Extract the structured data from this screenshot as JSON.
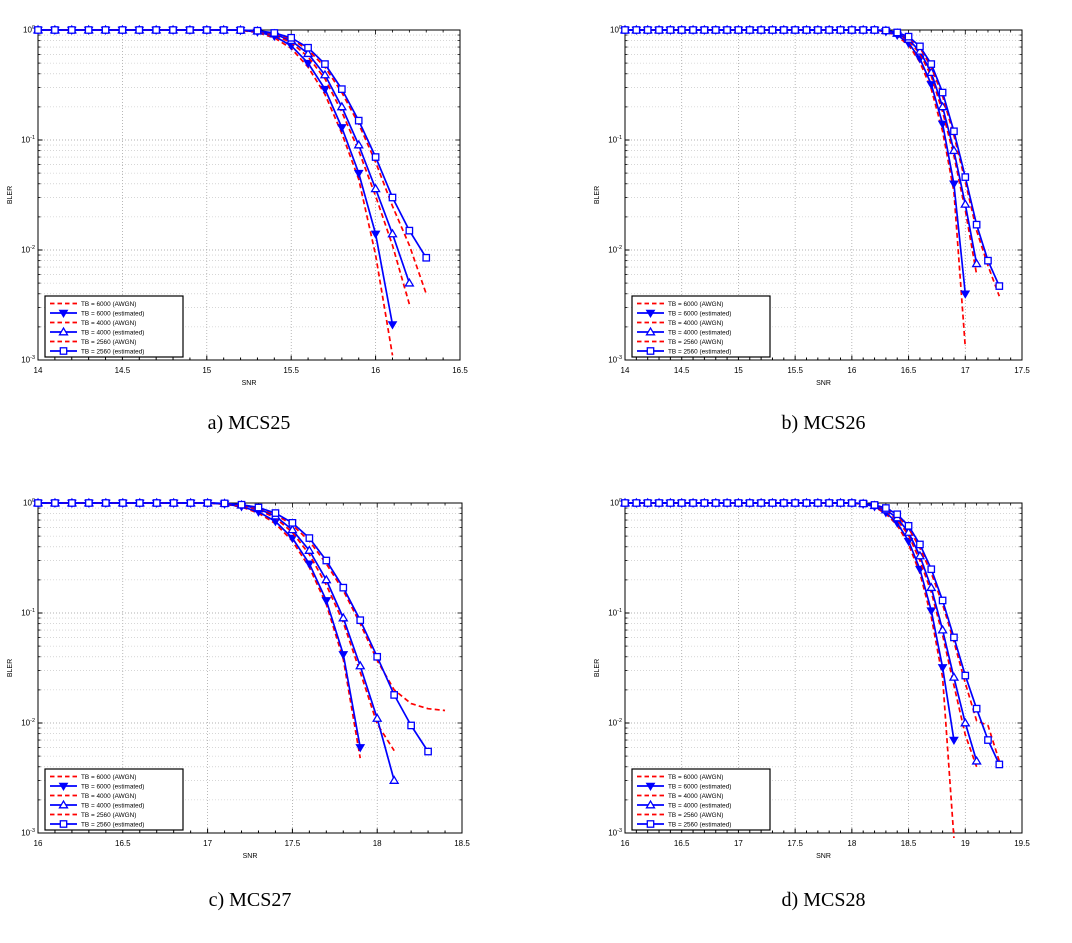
{
  "page": {
    "background": "#ffffff"
  },
  "colors": {
    "awgn": "#ff0000",
    "estimated": "#0000ff",
    "axis": "#000000",
    "grid_major": "#999999",
    "grid_minor": "#bdbdbd",
    "legend_bg": "#ffffff",
    "legend_border": "#000000"
  },
  "chart_data": [
    {
      "id": "a",
      "type": "line",
      "caption": "a) MCS25",
      "xlabel": "SNR",
      "ylabel": "BLER",
      "xlim": [
        14,
        16.5
      ],
      "xticks": [
        "14",
        "14.5",
        "15",
        "15.5",
        "16",
        "16.5"
      ],
      "ylog": true,
      "ylim": [
        0.001,
        1
      ],
      "yticks": [
        "10^0",
        "10^-1",
        "10^-2",
        "10^-3"
      ],
      "legend_position": "bottom-left",
      "series": [
        {
          "name": "TB = 6000 (AWGN)",
          "color": "#ff0000",
          "style": "dashed",
          "marker": "none",
          "x0": 14.0,
          "dx": 0.1,
          "y": [
            1,
            1,
            1,
            1,
            1,
            1,
            1,
            1,
            1,
            1,
            1,
            1,
            0.993,
            0.95,
            0.85,
            0.68,
            0.46,
            0.26,
            0.115,
            0.044,
            0.009,
            0.0011
          ]
        },
        {
          "name": "TB = 6000 (estimated)",
          "color": "#0000ff",
          "style": "solid",
          "marker": "triangle-down",
          "x0": 14.0,
          "dx": 0.1,
          "y": [
            1,
            1,
            1,
            1,
            1,
            1,
            1,
            1,
            1,
            1,
            1,
            1,
            0.995,
            0.96,
            0.88,
            0.72,
            0.5,
            0.29,
            0.13,
            0.05,
            0.014,
            0.0021
          ]
        },
        {
          "name": "TB = 4000 (AWGN)",
          "color": "#ff0000",
          "style": "dashed",
          "marker": "none",
          "x0": 14.0,
          "dx": 0.1,
          "y": [
            1,
            1,
            1,
            1,
            1,
            1,
            1,
            1,
            1,
            1,
            1,
            1,
            0.996,
            0.97,
            0.9,
            0.77,
            0.57,
            0.36,
            0.18,
            0.08,
            0.031,
            0.011,
            0.0032
          ]
        },
        {
          "name": "TB = 4000 (estimated)",
          "color": "#0000ff",
          "style": "solid",
          "marker": "triangle-up",
          "x0": 14.0,
          "dx": 0.1,
          "y": [
            1,
            1,
            1,
            1,
            1,
            1,
            1,
            1,
            1,
            1,
            1,
            1,
            0.997,
            0.975,
            0.92,
            0.8,
            0.61,
            0.39,
            0.2,
            0.09,
            0.036,
            0.014,
            0.005
          ]
        },
        {
          "name": "TB = 2560 (AWGN)",
          "color": "#ff0000",
          "style": "dashed",
          "marker": "none",
          "x0": 14.0,
          "dx": 0.1,
          "y": [
            1,
            1,
            1,
            1,
            1,
            1,
            1,
            1,
            1,
            1,
            1,
            1,
            0.997,
            0.982,
            0.93,
            0.83,
            0.66,
            0.46,
            0.27,
            0.14,
            0.063,
            0.025,
            0.011,
            0.004
          ]
        },
        {
          "name": "TB = 2560 (estimated)",
          "color": "#0000ff",
          "style": "solid",
          "marker": "square",
          "x0": 14.0,
          "dx": 0.1,
          "y": [
            1,
            1,
            1,
            1,
            1,
            1,
            1,
            1,
            1,
            1,
            1,
            1,
            0.998,
            0.985,
            0.94,
            0.85,
            0.69,
            0.49,
            0.29,
            0.15,
            0.07,
            0.03,
            0.015,
            0.0085
          ]
        }
      ]
    },
    {
      "id": "b",
      "type": "line",
      "caption": "b) MCS26",
      "xlabel": "SNR",
      "ylabel": "BLER",
      "xlim": [
        14,
        17.5
      ],
      "xticks": [
        "14",
        "14.5",
        "15",
        "15.5",
        "16",
        "16.5",
        "17",
        "17.5"
      ],
      "ylog": true,
      "ylim": [
        0.001,
        1
      ],
      "yticks": [
        "10^0",
        "10^-1",
        "10^-2",
        "10^-3"
      ],
      "legend_position": "bottom-left",
      "series": [
        {
          "name": "TB = 6000 (AWGN)",
          "color": "#ff0000",
          "style": "dashed",
          "marker": "none",
          "x0": 14.0,
          "dx": 0.1,
          "y": [
            1,
            1,
            1,
            1,
            1,
            1,
            1,
            1,
            1,
            1,
            1,
            1,
            1,
            1,
            1,
            1,
            1,
            1,
            1,
            1,
            1,
            1,
            1,
            0.965,
            0.88,
            0.73,
            0.51,
            0.29,
            0.12,
            0.034,
            0.0013
          ]
        },
        {
          "name": "TB = 6000 (estimated)",
          "color": "#0000ff",
          "style": "solid",
          "marker": "triangle-down",
          "x0": 14.0,
          "dx": 0.1,
          "y": [
            1,
            1,
            1,
            1,
            1,
            1,
            1,
            1,
            1,
            1,
            1,
            1,
            1,
            1,
            1,
            1,
            1,
            1,
            1,
            1,
            1,
            1,
            1,
            0.97,
            0.9,
            0.76,
            0.55,
            0.32,
            0.14,
            0.04,
            0.004
          ]
        },
        {
          "name": "TB = 4000 (AWGN)",
          "color": "#ff0000",
          "style": "dashed",
          "marker": "none",
          "x0": 14.0,
          "dx": 0.1,
          "y": [
            1,
            1,
            1,
            1,
            1,
            1,
            1,
            1,
            1,
            1,
            1,
            1,
            1,
            1,
            1,
            1,
            1,
            1,
            1,
            1,
            1,
            1,
            1,
            0.982,
            0.92,
            0.8,
            0.61,
            0.38,
            0.18,
            0.072,
            0.023,
            0.006
          ]
        },
        {
          "name": "TB = 4000 (estimated)",
          "color": "#0000ff",
          "style": "solid",
          "marker": "triangle-up",
          "x0": 14.0,
          "dx": 0.1,
          "y": [
            1,
            1,
            1,
            1,
            1,
            1,
            1,
            1,
            1,
            1,
            1,
            1,
            1,
            1,
            1,
            1,
            1,
            1,
            1,
            1,
            1,
            1,
            1,
            0.985,
            0.93,
            0.82,
            0.64,
            0.41,
            0.2,
            0.08,
            0.026,
            0.0075
          ]
        },
        {
          "name": "TB = 2560 (AWGN)",
          "color": "#ff0000",
          "style": "dashed",
          "marker": "none",
          "x0": 14.0,
          "dx": 0.1,
          "y": [
            1,
            1,
            1,
            1,
            1,
            1,
            1,
            1,
            1,
            1,
            1,
            1,
            1,
            1,
            1,
            1,
            1,
            1,
            1,
            1,
            1,
            1,
            1,
            0.988,
            0.945,
            0.855,
            0.69,
            0.46,
            0.25,
            0.11,
            0.042,
            0.015,
            0.0072,
            0.0038
          ]
        },
        {
          "name": "TB = 2560 (estimated)",
          "color": "#0000ff",
          "style": "solid",
          "marker": "square",
          "x0": 14.0,
          "dx": 0.1,
          "y": [
            1,
            1,
            1,
            1,
            1,
            1,
            1,
            1,
            1,
            1,
            1,
            1,
            1,
            1,
            1,
            1,
            1,
            1,
            1,
            1,
            1,
            1,
            1,
            0.99,
            0.95,
            0.87,
            0.71,
            0.49,
            0.27,
            0.12,
            0.046,
            0.017,
            0.008,
            0.0047
          ]
        }
      ]
    },
    {
      "id": "c",
      "type": "line",
      "caption": "c) MCS27",
      "xlabel": "SNR",
      "ylabel": "BLER",
      "xlim": [
        16,
        18.5
      ],
      "xticks": [
        "16",
        "16.5",
        "17",
        "17.5",
        "18",
        "18.5"
      ],
      "ylog": true,
      "ylim": [
        0.001,
        1
      ],
      "yticks": [
        "10^0",
        "10^-1",
        "10^-2",
        "10^-3"
      ],
      "legend_position": "bottom-left",
      "series": [
        {
          "name": "TB = 6000 (AWGN)",
          "color": "#ff0000",
          "style": "dashed",
          "marker": "none",
          "x0": 16.0,
          "dx": 0.1,
          "y": [
            1,
            1,
            1,
            1,
            1,
            1,
            1,
            1,
            1,
            1,
            1,
            0.975,
            0.92,
            0.81,
            0.65,
            0.45,
            0.26,
            0.12,
            0.038,
            0.0048
          ]
        },
        {
          "name": "TB = 6000 (estimated)",
          "color": "#0000ff",
          "style": "solid",
          "marker": "triangle-down",
          "x0": 16.0,
          "dx": 0.1,
          "y": [
            1,
            1,
            1,
            1,
            1,
            1,
            1,
            1,
            1,
            1,
            1,
            0.98,
            0.93,
            0.83,
            0.68,
            0.48,
            0.28,
            0.13,
            0.042,
            0.006
          ]
        },
        {
          "name": "TB = 4000 (AWGN)",
          "color": "#ff0000",
          "style": "dashed",
          "marker": "none",
          "x0": 16.0,
          "dx": 0.1,
          "y": [
            1,
            1,
            1,
            1,
            1,
            1,
            1,
            1,
            1,
            1,
            1,
            0.987,
            0.945,
            0.87,
            0.73,
            0.54,
            0.34,
            0.18,
            0.082,
            0.029,
            0.0098,
            0.0056
          ]
        },
        {
          "name": "TB = 4000 (estimated)",
          "color": "#0000ff",
          "style": "solid",
          "marker": "triangle-up",
          "x0": 16.0,
          "dx": 0.1,
          "y": [
            1,
            1,
            1,
            1,
            1,
            1,
            1,
            1,
            1,
            1,
            1,
            0.99,
            0.955,
            0.885,
            0.76,
            0.57,
            0.37,
            0.2,
            0.09,
            0.033,
            0.011,
            0.003
          ]
        },
        {
          "name": "TB = 2560 (AWGN)",
          "color": "#ff0000",
          "style": "dashed",
          "marker": "none",
          "x0": 16.0,
          "dx": 0.1,
          "y": [
            1,
            1,
            1,
            1,
            1,
            1,
            1,
            1,
            1,
            1,
            1,
            0.99,
            0.96,
            0.9,
            0.79,
            0.63,
            0.45,
            0.28,
            0.16,
            0.08,
            0.037,
            0.02,
            0.015,
            0.0135,
            0.013
          ]
        },
        {
          "name": "TB = 2560 (estimated)",
          "color": "#0000ff",
          "style": "solid",
          "marker": "square",
          "x0": 16.0,
          "dx": 0.1,
          "y": [
            1,
            1,
            1,
            1,
            1,
            1,
            1,
            1,
            1,
            1,
            1,
            0.992,
            0.965,
            0.91,
            0.81,
            0.66,
            0.48,
            0.3,
            0.17,
            0.086,
            0.04,
            0.018,
            0.0095,
            0.0055
          ]
        }
      ]
    },
    {
      "id": "d",
      "type": "line",
      "caption": "d) MCS28",
      "xlabel": "SNR",
      "ylabel": "BLER",
      "xlim": [
        16,
        19.5
      ],
      "xticks": [
        "16",
        "16.5",
        "17",
        "17.5",
        "18",
        "18.5",
        "19",
        "19.5"
      ],
      "ylog": true,
      "ylim": [
        0.001,
        1
      ],
      "yticks": [
        "10^0",
        "10^-1",
        "10^-2",
        "10^-3"
      ],
      "legend_position": "bottom-left",
      "series": [
        {
          "name": "TB = 6000 (AWGN)",
          "color": "#ff0000",
          "style": "dashed",
          "marker": "none",
          "x0": 16.0,
          "dx": 0.1,
          "y": [
            1,
            1,
            1,
            1,
            1,
            1,
            1,
            1,
            1,
            1,
            1,
            1,
            1,
            1,
            1,
            1,
            1,
            1,
            1,
            1,
            1,
            0.975,
            0.92,
            0.8,
            0.63,
            0.42,
            0.23,
            0.092,
            0.026,
            0.0009
          ]
        },
        {
          "name": "TB = 6000 (estimated)",
          "color": "#0000ff",
          "style": "solid",
          "marker": "triangle-down",
          "x0": 16.0,
          "dx": 0.1,
          "y": [
            1,
            1,
            1,
            1,
            1,
            1,
            1,
            1,
            1,
            1,
            1,
            1,
            1,
            1,
            1,
            1,
            1,
            1,
            1,
            1,
            1,
            0.98,
            0.93,
            0.82,
            0.66,
            0.45,
            0.25,
            0.105,
            0.032,
            0.007
          ]
        },
        {
          "name": "TB = 4000 (AWGN)",
          "color": "#ff0000",
          "style": "dashed",
          "marker": "none",
          "x0": 16.0,
          "dx": 0.1,
          "y": [
            1,
            1,
            1,
            1,
            1,
            1,
            1,
            1,
            1,
            1,
            1,
            1,
            1,
            1,
            1,
            1,
            1,
            1,
            1,
            1,
            1,
            0.982,
            0.935,
            0.85,
            0.7,
            0.51,
            0.3,
            0.155,
            0.063,
            0.022,
            0.0078,
            0.004
          ]
        },
        {
          "name": "TB = 4000 (estimated)",
          "color": "#0000ff",
          "style": "solid",
          "marker": "triangle-up",
          "x0": 16.0,
          "dx": 0.1,
          "y": [
            1,
            1,
            1,
            1,
            1,
            1,
            1,
            1,
            1,
            1,
            1,
            1,
            1,
            1,
            1,
            1,
            1,
            1,
            1,
            1,
            1,
            0.985,
            0.945,
            0.865,
            0.73,
            0.54,
            0.33,
            0.17,
            0.07,
            0.026,
            0.01,
            0.0045
          ]
        },
        {
          "name": "TB = 2560 (AWGN)",
          "color": "#ff0000",
          "style": "dashed",
          "marker": "none",
          "x0": 16.0,
          "dx": 0.1,
          "y": [
            1,
            1,
            1,
            1,
            1,
            1,
            1,
            1,
            1,
            1,
            1,
            1,
            1,
            1,
            1,
            1,
            1,
            1,
            1,
            1,
            1,
            0.988,
            0.955,
            0.89,
            0.77,
            0.59,
            0.39,
            0.23,
            0.12,
            0.055,
            0.023,
            0.0105,
            0.0095,
            0.0045
          ]
        },
        {
          "name": "TB = 2560 (estimated)",
          "color": "#0000ff",
          "style": "solid",
          "marker": "square",
          "x0": 16.0,
          "dx": 0.1,
          "y": [
            1,
            1,
            1,
            1,
            1,
            1,
            1,
            1,
            1,
            1,
            1,
            1,
            1,
            1,
            1,
            1,
            1,
            1,
            1,
            1,
            1,
            0.99,
            0.96,
            0.9,
            0.79,
            0.62,
            0.42,
            0.25,
            0.13,
            0.06,
            0.027,
            0.0135,
            0.007,
            0.0042
          ]
        }
      ]
    }
  ]
}
